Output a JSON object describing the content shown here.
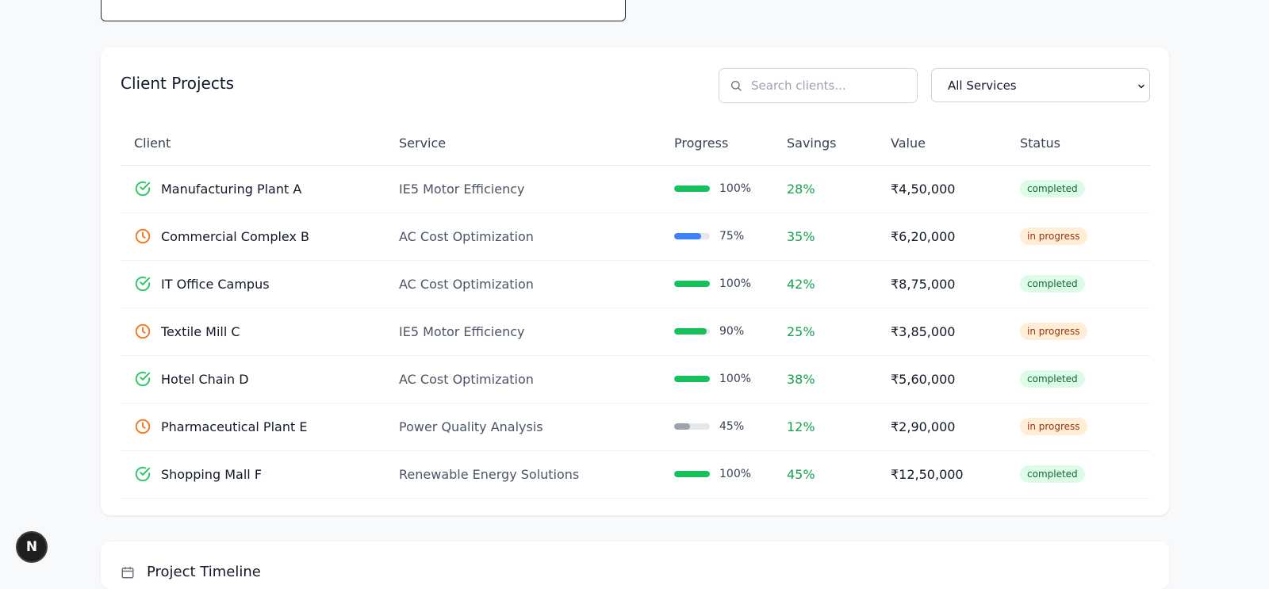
{
  "panel": {
    "title": "Client Projects",
    "search_placeholder": "Search clients...",
    "filter_selected": "All Services"
  },
  "table": {
    "headers": [
      "Client",
      "Service",
      "Progress",
      "Savings",
      "Value",
      "Status"
    ],
    "rows": [
      {
        "client": "Manufacturing Plant A",
        "service": "IE5 Motor Efficiency",
        "progress": 100,
        "progress_label": "100%",
        "savings": "28%",
        "value": "₹4,50,000",
        "status": "completed",
        "icon": "check-circle-icon",
        "bar_color": "#16c05a"
      },
      {
        "client": "Commercial Complex B",
        "service": "AC Cost Optimization",
        "progress": 75,
        "progress_label": "75%",
        "savings": "35%",
        "value": "₹6,20,000",
        "status": "in progress",
        "icon": "clock-icon",
        "bar_color": "#3b82f6"
      },
      {
        "client": "IT Office Campus",
        "service": "AC Cost Optimization",
        "progress": 100,
        "progress_label": "100%",
        "savings": "42%",
        "value": "₹8,75,000",
        "status": "completed",
        "icon": "check-circle-icon",
        "bar_color": "#16c05a"
      },
      {
        "client": "Textile Mill C",
        "service": "IE5 Motor Efficiency",
        "progress": 90,
        "progress_label": "90%",
        "savings": "25%",
        "value": "₹3,85,000",
        "status": "in progress",
        "icon": "clock-icon",
        "bar_color": "#16c05a"
      },
      {
        "client": "Hotel Chain D",
        "service": "AC Cost Optimization",
        "progress": 100,
        "progress_label": "100%",
        "savings": "38%",
        "value": "₹5,60,000",
        "status": "completed",
        "icon": "check-circle-icon",
        "bar_color": "#16c05a"
      },
      {
        "client": "Pharmaceutical Plant E",
        "service": "Power Quality Analysis",
        "progress": 45,
        "progress_label": "45%",
        "savings": "12%",
        "value": "₹2,90,000",
        "status": "in progress",
        "icon": "clock-icon",
        "bar_color": "#9ca3af"
      },
      {
        "client": "Shopping Mall F",
        "service": "Renewable Energy Solutions",
        "progress": 100,
        "progress_label": "100%",
        "savings": "45%",
        "value": "₹12,50,000",
        "status": "completed",
        "icon": "check-circle-icon",
        "bar_color": "#16c05a"
      }
    ]
  },
  "timeline": {
    "title": "Project Timeline"
  },
  "fab": {
    "label": "N"
  },
  "colors": {
    "completed_icon": "#22c55e",
    "in_progress_icon": "#f97316"
  }
}
